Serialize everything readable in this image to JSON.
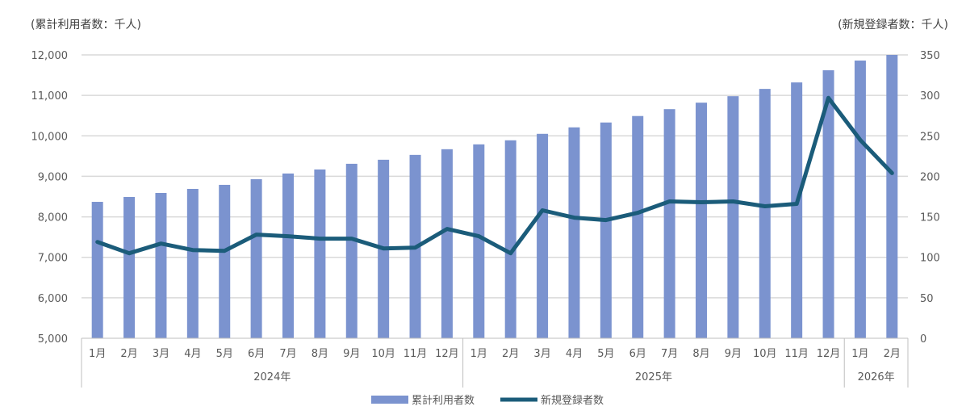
{
  "chart_data": {
    "type": "bar+line",
    "left_axis_label": "(累計利用者数：千人)",
    "right_axis_label": "(新規登録者数：千人)",
    "left_ylim": [
      5000,
      12000
    ],
    "left_ticks": [
      "5,000",
      "6,000",
      "7,000",
      "8,000",
      "9,000",
      "10,000",
      "11,000",
      "12,000"
    ],
    "right_ylim": [
      0,
      350
    ],
    "right_ticks": [
      "0",
      "50",
      "100",
      "150",
      "200",
      "250",
      "300",
      "350"
    ],
    "grid": true,
    "legend_placement": "bottom",
    "months": [
      "1月",
      "2月",
      "3月",
      "4月",
      "5月",
      "6月",
      "7月",
      "8月",
      "9月",
      "10月",
      "11月",
      "12月",
      "1月",
      "2月",
      "3月",
      "4月",
      "5月",
      "6月",
      "7月",
      "8月",
      "9月",
      "10月",
      "11月",
      "12月",
      "1月",
      "2月"
    ],
    "years": [
      {
        "label": "2024年",
        "count": 12
      },
      {
        "label": "2025年",
        "count": 12
      },
      {
        "label": "2026年",
        "count": 2
      }
    ],
    "series": [
      {
        "name": "累計利用者数",
        "type": "bar",
        "axis": "left",
        "color": "#7b93cf",
        "values": [
          8370,
          8490,
          8590,
          8690,
          8790,
          8930,
          9070,
          9170,
          9310,
          9410,
          9530,
          9670,
          9790,
          9890,
          10050,
          10210,
          10330,
          10490,
          10660,
          10820,
          10980,
          11160,
          11320,
          11620,
          11860,
          12000
        ]
      },
      {
        "name": "新規登録者数",
        "type": "line",
        "axis": "right",
        "color": "#1b5c7a",
        "values": [
          119,
          105,
          117,
          109,
          108,
          128,
          126,
          123,
          123,
          111,
          112,
          135,
          126,
          105,
          158,
          149,
          146,
          155,
          169,
          168,
          169,
          163,
          166,
          297,
          245,
          204
        ]
      }
    ]
  }
}
